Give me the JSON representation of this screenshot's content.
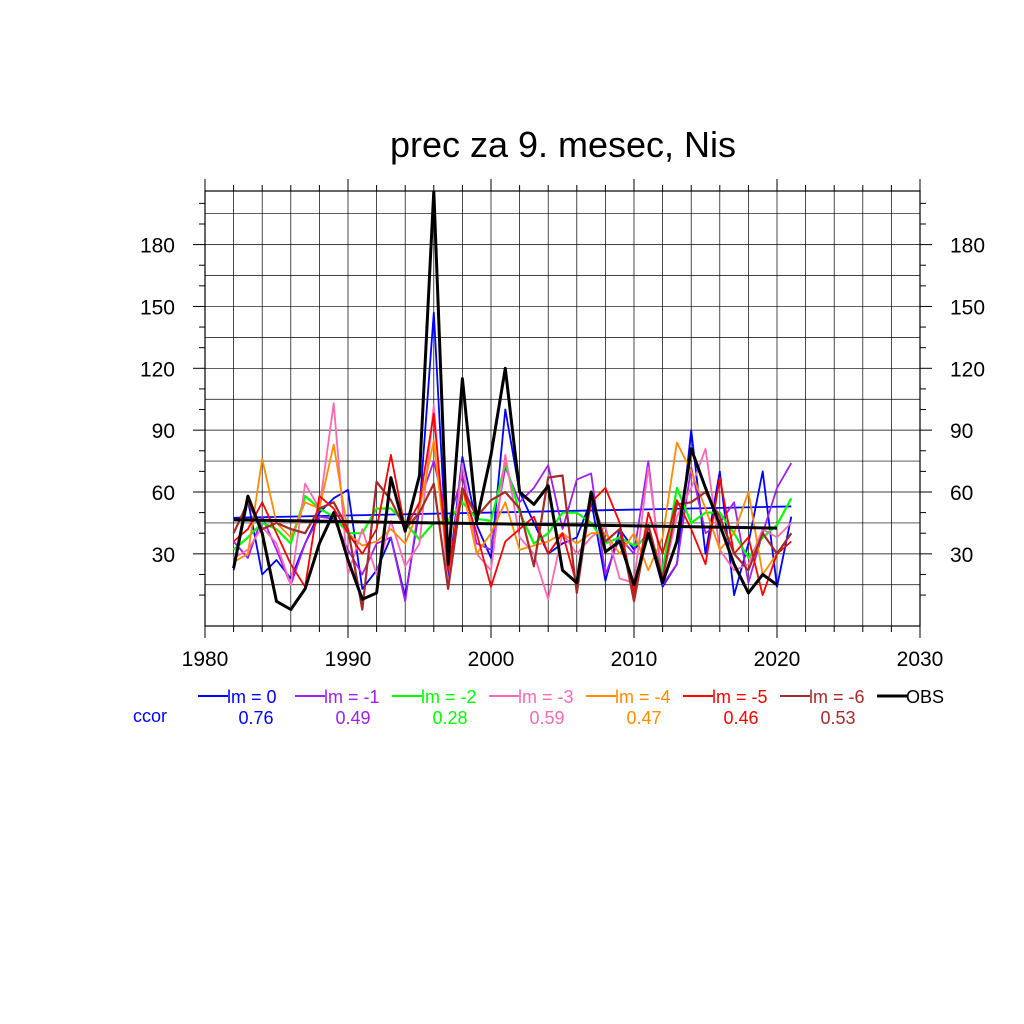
{
  "chart_data": {
    "type": "line",
    "title": "prec za 9. mesec, Nis",
    "xlabel": "",
    "ylabel": "",
    "xlim": [
      1980,
      2030
    ],
    "ylim": [
      -5,
      206
    ],
    "xticks": [
      1980,
      1990,
      2000,
      2010,
      2020,
      2030
    ],
    "yticks": [
      30,
      60,
      90,
      120,
      150,
      180
    ],
    "grid": true,
    "legend": "bottom",
    "ccor_label": "ccor",
    "ccor_color": "#0000ff",
    "x": [
      1982,
      1983,
      1984,
      1985,
      1986,
      1987,
      1988,
      1989,
      1990,
      1991,
      1992,
      1993,
      1994,
      1995,
      1996,
      1997,
      1998,
      1999,
      2000,
      2001,
      2002,
      2003,
      2004,
      2005,
      2006,
      2007,
      2008,
      2009,
      2010,
      2011,
      2012,
      2013,
      2014,
      2015,
      2016,
      2017,
      2018,
      2019,
      2020,
      2021
    ],
    "series": [
      {
        "name": "lm = 0",
        "color": "#0000ff",
        "width": 1.8,
        "ccor": "0.76",
        "values": [
          22,
          56,
          20,
          27,
          18,
          35,
          50,
          57,
          61,
          13,
          22,
          38,
          9,
          52,
          147,
          17,
          77,
          44,
          28,
          100,
          60,
          45,
          30,
          35,
          38,
          56,
          17,
          42,
          32,
          40,
          14,
          25,
          90,
          30,
          70,
          10,
          35,
          70,
          14,
          48
        ],
        "trend": [
          47.5,
          53
        ]
      },
      {
        "name": "lm = -1",
        "color": "#a020f0",
        "width": 1.8,
        "ccor": "0.49",
        "values": [
          36,
          28,
          48,
          32,
          15,
          35,
          48,
          47,
          32,
          20,
          35,
          38,
          7,
          55,
          75,
          45,
          68,
          35,
          32,
          72,
          55,
          62,
          73,
          42,
          66,
          69,
          20,
          38,
          30,
          75,
          15,
          25,
          72,
          40,
          45,
          55,
          16,
          40,
          62,
          74
        ]
      },
      {
        "name": "lm = -2",
        "color": "#00ff00",
        "width": 2.2,
        "ccor": "0.28",
        "values": [
          32,
          38,
          45,
          42,
          35,
          58,
          52,
          48,
          40,
          40,
          52,
          52,
          45,
          37,
          45,
          46,
          55,
          47,
          46,
          74,
          50,
          35,
          40,
          50,
          50,
          45,
          35,
          38,
          34,
          38,
          22,
          62,
          45,
          50,
          50,
          40,
          28,
          38,
          44,
          57
        ]
      },
      {
        "name": "lm = -3",
        "color": "#ff69b4",
        "width": 1.8,
        "ccor": "0.59",
        "values": [
          28,
          32,
          43,
          35,
          15,
          64,
          52,
          103,
          20,
          42,
          20,
          46,
          24,
          35,
          102,
          14,
          74,
          30,
          22,
          78,
          38,
          30,
          8,
          40,
          30,
          38,
          43,
          18,
          16,
          72,
          18,
          48,
          62,
          81,
          32,
          22,
          25,
          42,
          38,
          45
        ]
      },
      {
        "name": "lm = -4",
        "color": "#ff8c00",
        "width": 1.8,
        "ccor": "0.47",
        "values": [
          26,
          30,
          76,
          45,
          38,
          55,
          52,
          83,
          40,
          34,
          36,
          42,
          35,
          52,
          85,
          22,
          62,
          30,
          40,
          55,
          32,
          34,
          36,
          40,
          35,
          40,
          40,
          30,
          40,
          22,
          38,
          84,
          70,
          52,
          32,
          40,
          60,
          20,
          30,
          40
        ]
      },
      {
        "name": "lm = -5",
        "color": "#ff0000",
        "width": 1.8,
        "ccor": "0.46",
        "values": [
          36,
          42,
          55,
          40,
          25,
          14,
          58,
          52,
          40,
          30,
          42,
          78,
          42,
          55,
          98,
          22,
          62,
          40,
          14,
          36,
          42,
          48,
          30,
          40,
          15,
          55,
          62,
          45,
          10,
          50,
          30,
          56,
          42,
          25,
          67,
          30,
          38,
          10,
          30,
          36
        ]
      },
      {
        "name": "lm = -6",
        "color": "#a52a2a",
        "width": 2.2,
        "ccor": "0.53",
        "values": [
          40,
          55,
          42,
          45,
          42,
          40,
          52,
          55,
          42,
          3,
          65,
          56,
          42,
          50,
          64,
          13,
          62,
          48,
          56,
          60,
          52,
          24,
          67,
          68,
          11,
          59,
          36,
          42,
          7,
          44,
          18,
          54,
          55,
          60,
          48,
          30,
          22,
          40,
          30,
          40
        ]
      },
      {
        "name": "OBS",
        "color": "#000000",
        "width": 3,
        "ccor": "",
        "values": [
          23,
          58,
          40,
          7,
          3,
          13,
          35,
          50,
          27,
          8,
          11,
          67,
          41,
          68,
          206,
          25,
          115,
          46,
          78,
          120,
          60,
          54,
          63,
          22,
          16,
          60,
          31,
          36,
          15,
          40,
          16,
          36,
          81,
          62,
          44,
          25,
          11,
          20,
          15,
          null
        ],
        "trend": [
          46.5,
          42.5
        ]
      }
    ]
  }
}
